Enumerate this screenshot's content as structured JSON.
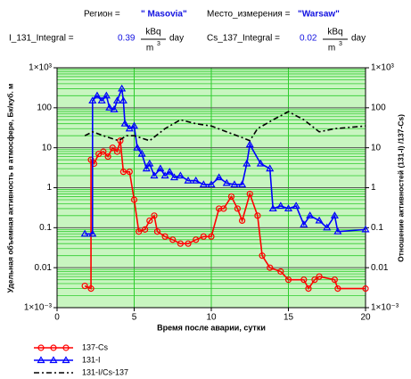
{
  "chart_data": {
    "type": "line",
    "annotations": {
      "region_label": "Регион =",
      "region": "\" Masovia\"",
      "site_label": "Место_измерения =",
      "site": "\"Warsaw\"",
      "i131_label": "I_131_Integral =",
      "i131": 0.39,
      "cs137_label": "Cs_137_Integral =",
      "cs137": 0.02,
      "unit_num": "kBq",
      "unit_den": "m",
      "unit_exp": "3",
      "unit_time": "day"
    },
    "xlabel": "Время после аварии, сутки",
    "ylabel": "Удельная объемная активность в атмосфере, Бк/куб. м",
    "y2label": "Отношение активностей (131-I) /137-Cs)",
    "xlim": [
      0,
      20
    ],
    "xticks": [
      0,
      5,
      10,
      15,
      20
    ],
    "ylim": [
      0.001,
      1000
    ],
    "yticks": [
      {
        "value": 0.001,
        "label": "1×10⁻³"
      },
      0.01,
      0.1,
      1,
      10,
      100,
      {
        "value": 1000,
        "label": "1×10³"
      }
    ],
    "y2lim": [
      0.001,
      1000
    ],
    "y2ticks": [
      {
        "value": 0.001,
        "label": "1×10⁻³"
      },
      0.01,
      0.1,
      1,
      10,
      100,
      {
        "value": 1000,
        "label": "1×10³"
      }
    ],
    "log_y": true,
    "grid": true,
    "minor_grid": true,
    "background": "#c8f5c0",
    "grid_color": "#2ecc2e",
    "legend": "bottom-left",
    "series": [
      {
        "name": "137-Cs",
        "color": "#ff0000",
        "marker": "circle",
        "x": [
          1.8,
          2.2,
          2.2,
          2.4,
          2.7,
          3.0,
          3.3,
          3.6,
          3.9,
          4.1,
          4.3,
          4.7,
          5.0,
          5.3,
          5.7,
          6.0,
          6.3,
          6.5,
          7.0,
          7.5,
          8.0,
          8.5,
          9.0,
          9.5,
          10.0,
          10.5,
          10.8,
          11.3,
          11.7,
          12.0,
          12.5,
          13.0,
          13.3,
          13.8,
          14.5,
          15.0,
          16.0,
          16.3,
          16.7,
          17.0,
          18.0,
          18.2,
          20
        ],
        "values": [
          0.0035,
          0.003,
          5,
          4,
          7,
          8,
          6,
          10,
          8,
          15,
          2.5,
          2.5,
          0.5,
          0.08,
          0.09,
          0.15,
          0.2,
          0.08,
          0.06,
          0.05,
          0.04,
          0.04,
          0.05,
          0.06,
          0.06,
          0.3,
          0.3,
          0.6,
          0.3,
          0.15,
          0.7,
          0.2,
          0.02,
          0.01,
          0.008,
          0.005,
          0.005,
          0.003,
          0.005,
          0.006,
          0.005,
          0.003,
          0.003
        ]
      },
      {
        "name": "131-I",
        "color": "#0000ff",
        "marker": "triangle",
        "x": [
          1.8,
          2.3,
          2.3,
          2.6,
          2.9,
          3.2,
          3.4,
          3.7,
          3.9,
          4.2,
          4.3,
          4.4,
          4.7,
          5.0,
          5.2,
          5.5,
          5.8,
          6.0,
          6.3,
          6.7,
          7.0,
          7.3,
          7.6,
          8.0,
          8.5,
          9.0,
          9.5,
          10.0,
          10.5,
          11.0,
          11.5,
          12.0,
          12.3,
          12.5,
          13.2,
          13.8,
          14.0,
          14.5,
          15.0,
          15.5,
          16.0,
          16.4,
          17.0,
          17.5,
          18.0,
          18.2,
          20
        ],
        "values": [
          0.07,
          0.07,
          150,
          200,
          150,
          200,
          100,
          90,
          150,
          300,
          150,
          40,
          30,
          35,
          10,
          7,
          3,
          4,
          2,
          3,
          2,
          2.5,
          1.8,
          2,
          1.5,
          1.5,
          1.2,
          1.2,
          1.8,
          1.3,
          1.2,
          1.2,
          4,
          12,
          4,
          3,
          0.3,
          0.35,
          0.3,
          0.35,
          0.12,
          0.2,
          0.15,
          0.1,
          0.2,
          0.08,
          0.09
        ]
      },
      {
        "name": "131-I/Cs-137",
        "color": "#000000",
        "marker": "none",
        "dash": true,
        "axis": "y2",
        "x": [
          1.8,
          2.3,
          3.0,
          4.0,
          4.5,
          5.0,
          6.0,
          7.0,
          8.0,
          9.0,
          10.0,
          11.0,
          12.0,
          12.5,
          13.0,
          14.0,
          15.0,
          16.0,
          17.0,
          18.0,
          20
        ],
        "values": [
          20,
          25,
          20,
          15,
          20,
          20,
          15,
          30,
          50,
          40,
          35,
          25,
          18,
          15,
          30,
          50,
          80,
          50,
          25,
          30,
          35
        ]
      }
    ]
  }
}
